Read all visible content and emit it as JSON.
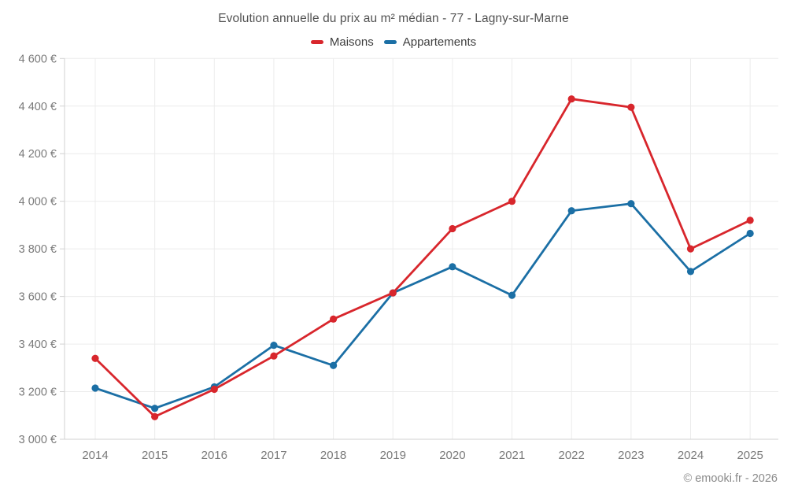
{
  "chart_data": {
    "type": "line",
    "title": "Evolution annuelle du prix au m² médian - 77 - Lagny-sur-Marne",
    "categories": [
      "2014",
      "2015",
      "2016",
      "2017",
      "2018",
      "2019",
      "2020",
      "2021",
      "2022",
      "2023",
      "2024",
      "2025"
    ],
    "series": [
      {
        "name": "Maisons",
        "color": "#d8262c",
        "values": [
          3340,
          3095,
          3210,
          3350,
          3505,
          3615,
          3885,
          4000,
          4430,
          4395,
          3800,
          3920
        ]
      },
      {
        "name": "Appartements",
        "color": "#1b6fa5",
        "values": [
          3215,
          3130,
          3220,
          3395,
          3310,
          3615,
          3725,
          3605,
          3960,
          3990,
          3705,
          3865
        ]
      }
    ],
    "ylim": [
      3000,
      4600
    ],
    "y_ticks": [
      {
        "value": 3000,
        "label": "3 000 €"
      },
      {
        "value": 3200,
        "label": "3 200 €"
      },
      {
        "value": 3400,
        "label": "3 400 €"
      },
      {
        "value": 3600,
        "label": "3 600 €"
      },
      {
        "value": 3800,
        "label": "3 800 €"
      },
      {
        "value": 4000,
        "label": "4 000 €"
      },
      {
        "value": 4200,
        "label": "4 200 €"
      },
      {
        "value": 4400,
        "label": "4 400 €"
      },
      {
        "value": 4600,
        "label": "4 600 €"
      }
    ],
    "grid": true,
    "legend_position": "top",
    "attribution": "© emooki.fr - 2026"
  },
  "colors": {
    "grid": "#ececec",
    "axis": "#d2d2d2",
    "axis_text": "#7a7a7a",
    "title_text": "#525252",
    "attribution_text": "#8a8a8a"
  }
}
